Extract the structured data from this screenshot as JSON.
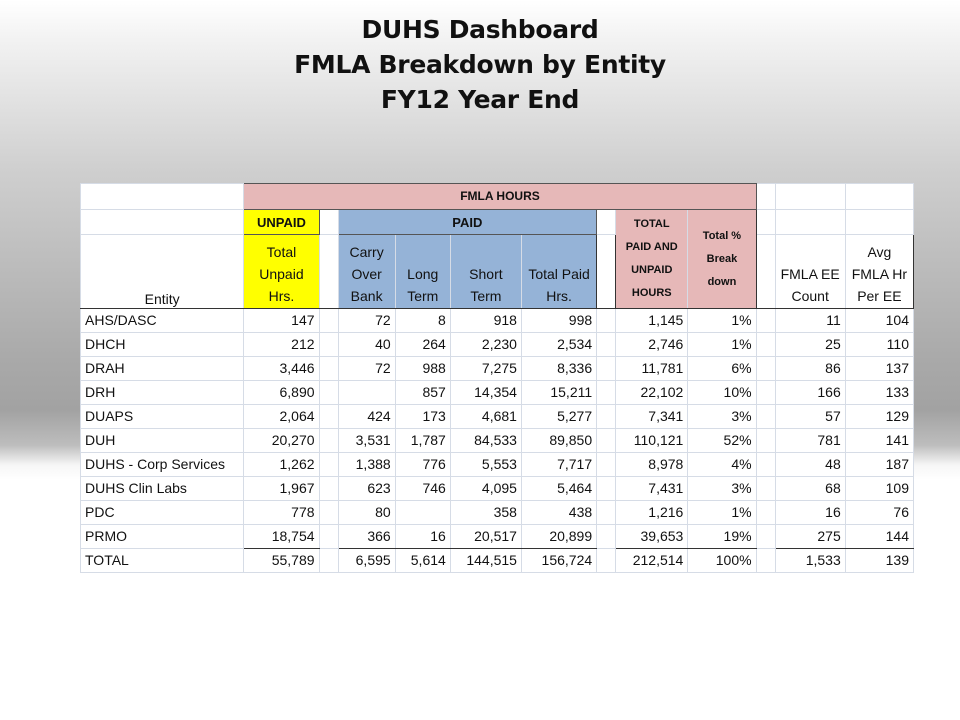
{
  "title": {
    "line1": "DUHS Dashboard",
    "line2": "FMLA Breakdown by Entity",
    "line3": "FY12 Year End"
  },
  "headers": {
    "fmla_hours": "FMLA HOURS",
    "unpaid": "UNPAID",
    "paid": "PAID",
    "total_paid_unpaid": "TOTAL PAID AND UNPAID HOURS",
    "total_pct": "Total % Break down",
    "entity": "Entity",
    "total_unpaid": "Total Unpaid Hrs.",
    "carry_over": "Carry Over Bank",
    "long_term": "Long Term",
    "short_term": "Short Term",
    "total_paid": "Total Paid Hrs.",
    "fmla_ee": "FMLA EE Count",
    "avg_fmla": "Avg FMLA Hr Per EE"
  },
  "rows": [
    {
      "entity": "AHS/DASC",
      "unpaid": "147",
      "carry": "72",
      "long": "8",
      "short": "918",
      "paid": "998",
      "total": "1,145",
      "pct": "1%",
      "ee": "11",
      "avg": "104"
    },
    {
      "entity": "DHCH",
      "unpaid": "212",
      "carry": "40",
      "long": "264",
      "short": "2,230",
      "paid": "2,534",
      "total": "2,746",
      "pct": "1%",
      "ee": "25",
      "avg": "110"
    },
    {
      "entity": "DRAH",
      "unpaid": "3,446",
      "carry": "72",
      "long": "988",
      "short": "7,275",
      "paid": "8,336",
      "total": "11,781",
      "pct": "6%",
      "ee": "86",
      "avg": "137"
    },
    {
      "entity": "DRH",
      "unpaid": "6,890",
      "carry": "",
      "long": "857",
      "short": "14,354",
      "paid": "15,211",
      "total": "22,102",
      "pct": "10%",
      "ee": "166",
      "avg": "133"
    },
    {
      "entity": "DUAPS",
      "unpaid": "2,064",
      "carry": "424",
      "long": "173",
      "short": "4,681",
      "paid": "5,277",
      "total": "7,341",
      "pct": "3%",
      "ee": "57",
      "avg": "129"
    },
    {
      "entity": "DUH",
      "unpaid": "20,270",
      "carry": "3,531",
      "long": "1,787",
      "short": "84,533",
      "paid": "89,850",
      "total": "110,121",
      "pct": "52%",
      "ee": "781",
      "avg": "141"
    },
    {
      "entity": "DUHS - Corp Services",
      "unpaid": "1,262",
      "carry": "1,388",
      "long": "776",
      "short": "5,553",
      "paid": "7,717",
      "total": "8,978",
      "pct": "4%",
      "ee": "48",
      "avg": "187"
    },
    {
      "entity": "DUHS Clin Labs",
      "unpaid": "1,967",
      "carry": "623",
      "long": "746",
      "short": "4,095",
      "paid": "5,464",
      "total": "7,431",
      "pct": "3%",
      "ee": "68",
      "avg": "109"
    },
    {
      "entity": "PDC",
      "unpaid": "778",
      "carry": "80",
      "long": "",
      "short": "358",
      "paid": "438",
      "total": "1,216",
      "pct": "1%",
      "ee": "16",
      "avg": "76"
    },
    {
      "entity": "PRMO",
      "unpaid": "18,754",
      "carry": "366",
      "long": "16",
      "short": "20,517",
      "paid": "20,899",
      "total": "39,653",
      "pct": "19%",
      "ee": "275",
      "avg": "144"
    },
    {
      "entity": "TOTAL",
      "unpaid": "55,789",
      "carry": "6,595",
      "long": "5,614",
      "short": "144,515",
      "paid": "156,724",
      "total": "212,514",
      "pct": "100%",
      "ee": "1,533",
      "avg": "139"
    }
  ]
}
